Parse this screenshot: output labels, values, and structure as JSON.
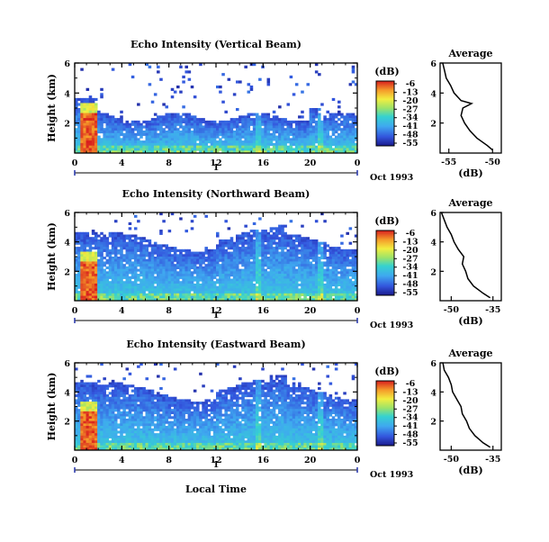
{
  "chart_data": [
    {
      "type": "heatmap",
      "title": "Echo Intensity (Vertical Beam)",
      "ylabel": "Height (km)",
      "xlabel": "",
      "x_ticks": [
        "0",
        "4",
        "8",
        "12",
        "16",
        "20",
        "0"
      ],
      "y_ticks": [
        "6",
        "4",
        "2"
      ],
      "date_label": "Oct 1993",
      "day_marker": "1",
      "xlim": [
        0,
        24
      ],
      "ylim": [
        0,
        6
      ],
      "colorbar": {
        "unit": "(dB)",
        "ticks": [
          "-6",
          "-13",
          "-20",
          "-27",
          "-34",
          "-41",
          "-48",
          "-55"
        ]
      },
      "profile": {
        "title": "Average",
        "xlabel": "(dB)",
        "x_ticks": [
          "-55",
          "-50"
        ],
        "y_ticks": [
          "6",
          "4",
          "2"
        ],
        "xlim": [
          -56,
          -49
        ],
        "heights": [
          0.2,
          0.5,
          1.0,
          1.5,
          2.0,
          2.5,
          3.0,
          3.3,
          3.5,
          4.0,
          4.5,
          5.0,
          5.5,
          6.0
        ],
        "values": [
          -50.0,
          -50.6,
          -51.8,
          -52.6,
          -53.2,
          -53.6,
          -53.4,
          -52.4,
          -53.6,
          -54.4,
          -54.8,
          -55.3,
          -55.5,
          -55.7
        ]
      }
    },
    {
      "type": "heatmap",
      "title": "Echo Intensity (Northward Beam)",
      "ylabel": "Height (km)",
      "xlabel": "",
      "x_ticks": [
        "0",
        "4",
        "8",
        "12",
        "16",
        "20",
        "0"
      ],
      "y_ticks": [
        "6",
        "4",
        "2"
      ],
      "date_label": "Oct 1993",
      "day_marker": "1",
      "xlim": [
        0,
        24
      ],
      "ylim": [
        0,
        6
      ],
      "colorbar": {
        "unit": "(dB)",
        "ticks": [
          "-6",
          "-13",
          "-20",
          "-27",
          "-34",
          "-41",
          "-48",
          "-55"
        ]
      },
      "profile": {
        "title": "Average",
        "xlabel": "(dB)",
        "x_ticks": [
          "-50",
          "-35"
        ],
        "y_ticks": [
          "6",
          "4",
          "2"
        ],
        "xlim": [
          -54,
          -32
        ],
        "heights": [
          0.2,
          0.5,
          1.0,
          1.5,
          2.0,
          2.5,
          3.0,
          3.5,
          4.0,
          4.5,
          5.0,
          5.5,
          6.0
        ],
        "values": [
          -36.0,
          -38.5,
          -42.0,
          -44.0,
          -44.8,
          -46.0,
          -45.5,
          -47.5,
          -49.0,
          -50.0,
          -51.5,
          -52.5,
          -53.5
        ]
      }
    },
    {
      "type": "heatmap",
      "title": "Echo Intensity (Eastward Beam)",
      "ylabel": "Height (km)",
      "xlabel": "Local Time",
      "x_ticks": [
        "0",
        "4",
        "8",
        "12",
        "16",
        "20",
        "0"
      ],
      "y_ticks": [
        "6",
        "4",
        "2"
      ],
      "date_label": "Oct 1993",
      "day_marker": "1",
      "xlim": [
        0,
        24
      ],
      "ylim": [
        0,
        6
      ],
      "colorbar": {
        "unit": "(dB)",
        "ticks": [
          "-6",
          "-13",
          "-20",
          "-27",
          "-34",
          "-41",
          "-48",
          "-55"
        ]
      },
      "profile": {
        "title": "Average",
        "xlabel": "(dB)",
        "x_ticks": [
          "-50",
          "-35"
        ],
        "y_ticks": [
          "6",
          "4",
          "2"
        ],
        "xlim": [
          -54,
          -32
        ],
        "heights": [
          0.2,
          0.5,
          1.0,
          1.5,
          2.0,
          2.5,
          3.0,
          3.5,
          4.0,
          4.5,
          5.0,
          5.5,
          6.0
        ],
        "values": [
          -36.0,
          -38.5,
          -41.5,
          -43.5,
          -44.5,
          -46.0,
          -46.5,
          -48.0,
          -49.5,
          -50.0,
          -51.0,
          -52.5,
          -53.0
        ]
      }
    }
  ]
}
